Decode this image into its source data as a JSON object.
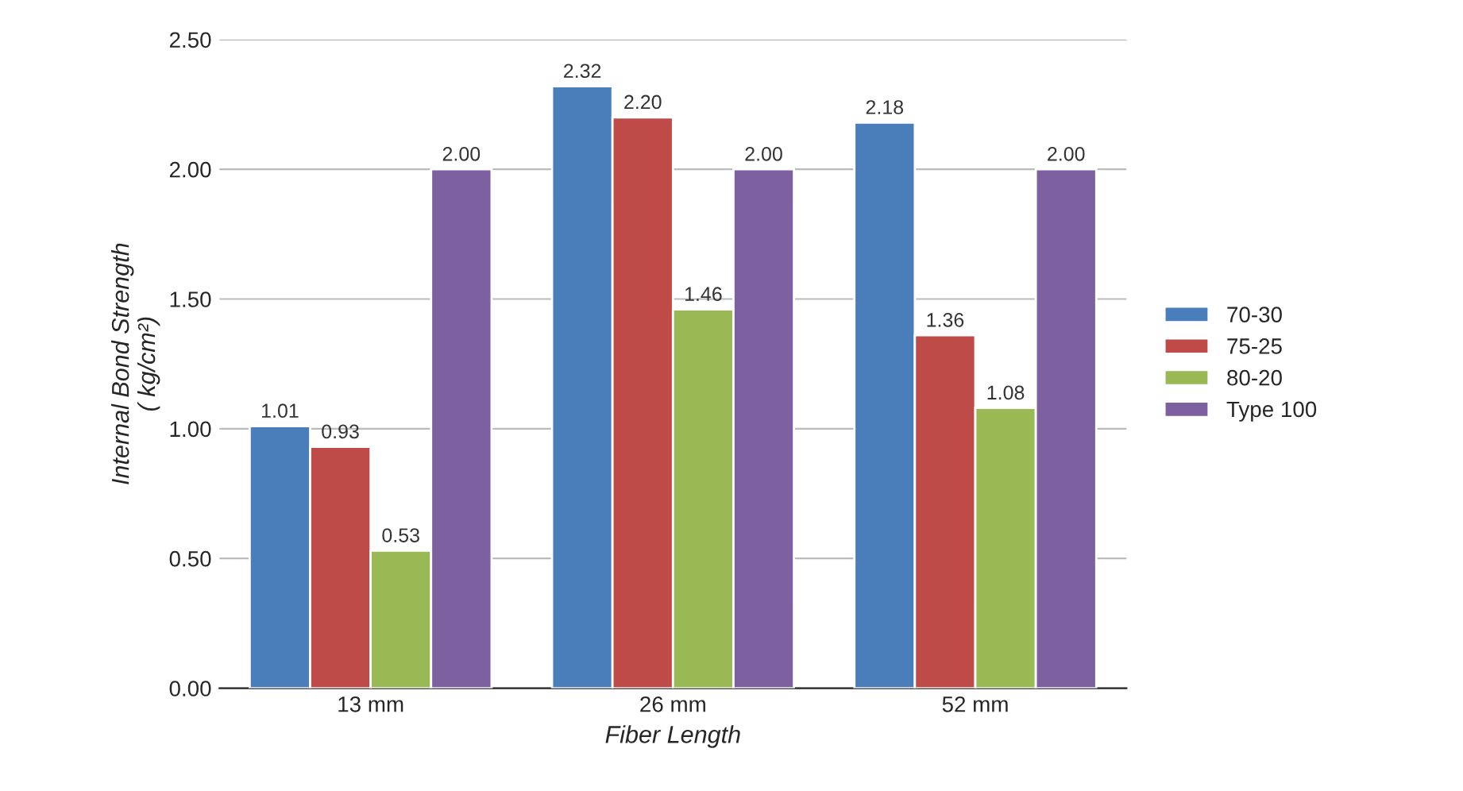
{
  "chart_data": {
    "type": "bar",
    "xlabel": "Fiber Length",
    "ylabel": "Internal Bond Strength\n( kg/cm²)",
    "categories": [
      "13 mm",
      "26 mm",
      "52 mm"
    ],
    "series": [
      {
        "name": "70-30",
        "color": "#4a7ebb",
        "values": [
          1.01,
          2.32,
          2.18
        ],
        "value_labels": [
          "1.01",
          "2.32",
          "2.18"
        ]
      },
      {
        "name": "75-25",
        "color": "#be4b48",
        "values": [
          0.93,
          2.2,
          1.36
        ],
        "value_labels": [
          "0.93",
          "2.20",
          "1.36"
        ]
      },
      {
        "name": "80-20",
        "color": "#98b954",
        "values": [
          0.53,
          1.46,
          1.08
        ],
        "value_labels": [
          "0.53",
          "1.46",
          "1.08"
        ]
      },
      {
        "name": "Type 100",
        "color": "#7d60a0",
        "values": [
          2.0,
          2.0,
          2.0
        ],
        "value_labels": [
          "2.00",
          "2.00",
          "2.00"
        ]
      }
    ],
    "ylim": [
      0,
      2.5
    ],
    "yticks": [
      {
        "value": 0,
        "label": "0.00"
      },
      {
        "value": 0.5,
        "label": "0.50"
      },
      {
        "value": 1,
        "label": "1.00"
      },
      {
        "value": 1.5,
        "label": "1.50"
      },
      {
        "value": 2,
        "label": "2.00"
      },
      {
        "value": 2.5,
        "label": "2.50"
      }
    ],
    "grid": "y",
    "legend": "right"
  }
}
